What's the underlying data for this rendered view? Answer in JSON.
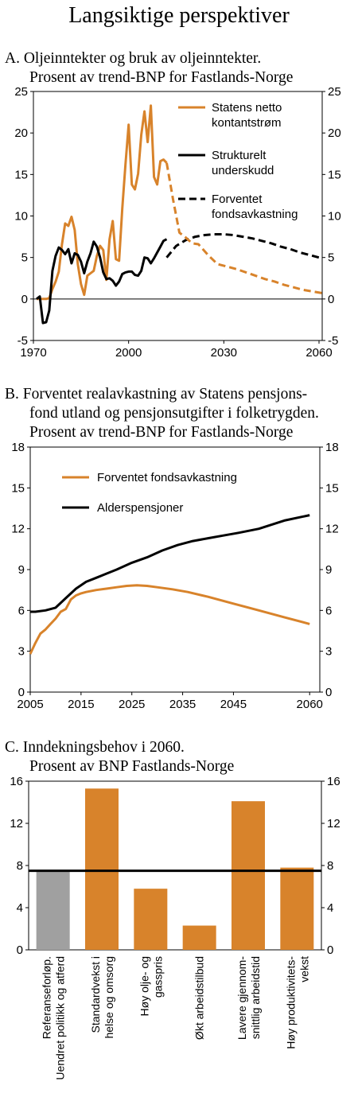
{
  "page_title": "Langsiktige perspektiver",
  "colors": {
    "orange": "#D8832B",
    "black": "#000000",
    "gray": "#A0A0A0"
  },
  "chart_data": [
    {
      "id": "A",
      "type": "line",
      "title": "A.  Oljeinntekter og bruk av oljeinntekter.",
      "subtitle": "Prosent av trend-BNP for Fastlands-Norge",
      "xlim": [
        1970,
        2061
      ],
      "ylim": [
        -5,
        25
      ],
      "xticks": [
        1970,
        2000,
        2030,
        2060
      ],
      "yticks": [
        -5,
        0,
        5,
        10,
        15,
        20,
        25
      ],
      "grid": false,
      "legend": "top-right",
      "series": [
        {
          "name": "Statens netto kontantstrøm",
          "color": "#D8832B",
          "dash": "solid",
          "x": [
            1971,
            1972,
            1973,
            1974,
            1975,
            1976,
            1977,
            1978,
            1979,
            1980,
            1981,
            1982,
            1983,
            1984,
            1985,
            1986,
            1987,
            1988,
            1989,
            1990,
            1991,
            1992,
            1993,
            1994,
            1995,
            1996,
            1997,
            1998,
            1999,
            2000,
            2001,
            2002,
            2003,
            2004,
            2005,
            2006,
            2007,
            2008,
            2009,
            2010,
            2011,
            2012
          ],
          "y": [
            0,
            0,
            0,
            0,
            0.1,
            1.2,
            2.1,
            3.3,
            6.6,
            9.1,
            8.8,
            9.9,
            8.3,
            4.2,
            1.8,
            0.5,
            2.8,
            3.1,
            3.4,
            5.2,
            6.4,
            5.9,
            2.3,
            7.2,
            9.4,
            4.8,
            4.6,
            10.9,
            16.2,
            21.0,
            13.8,
            13.2,
            15.1,
            19.8,
            22.6,
            18.9,
            23.3,
            14.7,
            13.8,
            16.6,
            16.8,
            16.4
          ]
        },
        {
          "name": "Strukturelt underskudd",
          "color": "#000000",
          "dash": "solid",
          "x": [
            1971,
            1972,
            1973,
            1974,
            1975,
            1976,
            1977,
            1978,
            1979,
            1980,
            1981,
            1982,
            1983,
            1984,
            1985,
            1986,
            1987,
            1988,
            1989,
            1990,
            1991,
            1992,
            1993,
            1994,
            1995,
            1996,
            1997,
            1998,
            1999,
            2000,
            2001,
            2002,
            2003,
            2004,
            2005,
            2006,
            2007,
            2008,
            2009,
            2010,
            2011,
            2012
          ],
          "y": [
            0,
            0.3,
            -2.9,
            -2.8,
            -1.4,
            3.4,
            5.2,
            6.2,
            5.9,
            5.4,
            6.0,
            4.3,
            5.5,
            5.3,
            4.5,
            3.1,
            4.5,
            5.5,
            6.9,
            6.3,
            5.0,
            3.2,
            2.4,
            2.5,
            2.2,
            1.6,
            2.1,
            3.0,
            3.2,
            3.3,
            3.3,
            2.9,
            2.8,
            3.4,
            5.0,
            4.9,
            4.3,
            4.9,
            5.6,
            6.3,
            7.0,
            7.2
          ]
        },
        {
          "name": "Forventet fondsavkastning",
          "color": "#000000",
          "dash": "dashed",
          "x": [
            2012,
            2015,
            2018,
            2021,
            2024,
            2027,
            2030,
            2033,
            2036,
            2039,
            2042,
            2045,
            2048,
            2051,
            2054,
            2057,
            2060
          ],
          "y": [
            5.0,
            6.4,
            7.1,
            7.5,
            7.7,
            7.8,
            7.8,
            7.7,
            7.5,
            7.3,
            7.0,
            6.7,
            6.3,
            6.0,
            5.6,
            5.3,
            5.0
          ]
        },
        {
          "name": "Statens netto kontantstrøm (fremskrevet)",
          "color": "#D8832B",
          "dash": "dashed",
          "x": [
            2012,
            2014,
            2016,
            2018,
            2020,
            2022,
            2025,
            2028,
            2031,
            2034,
            2037,
            2040,
            2043,
            2046,
            2049,
            2052,
            2055,
            2058,
            2061
          ],
          "y": [
            16.4,
            12.0,
            8.0,
            7.4,
            6.7,
            6.6,
            5.3,
            4.2,
            3.9,
            3.6,
            3.2,
            2.8,
            2.4,
            2.1,
            1.7,
            1.4,
            1.1,
            0.9,
            0.7
          ]
        }
      ],
      "legend_entries": [
        {
          "line1": "Statens netto",
          "line2": "kontantstrøm",
          "color": "#D8832B",
          "dash": "solid"
        },
        {
          "line1": "Strukturelt",
          "line2": "underskudd",
          "color": "#000000",
          "dash": "solid"
        },
        {
          "line1": "Forventet",
          "line2": "fondsavkastning",
          "color": "#000000",
          "dash": "dashed"
        }
      ]
    },
    {
      "id": "B",
      "type": "line",
      "title": "B.  Forventet realavkastning av Statens pensjons-",
      "subtitle": "fond utland og pensjonsutgifter i folketrygden.",
      "subtitle2": "Prosent av trend-BNP for Fastlands-Norge",
      "xlim": [
        2005,
        2062
      ],
      "ylim": [
        0,
        18
      ],
      "xticks": [
        2005,
        2015,
        2025,
        2035,
        2045,
        2060
      ],
      "yticks": [
        0,
        3,
        6,
        9,
        12,
        15,
        18
      ],
      "grid": false,
      "legend": "top-left",
      "series": [
        {
          "name": "Forventet fondsavkastning",
          "color": "#D8832B",
          "x": [
            2005,
            2006,
            2007,
            2008,
            2009,
            2010,
            2011,
            2012,
            2013,
            2014,
            2015,
            2016,
            2018,
            2020,
            2022,
            2024,
            2026,
            2028,
            2030,
            2033,
            2036,
            2040,
            2045,
            2050,
            2055,
            2060
          ],
          "y": [
            2.8,
            3.6,
            4.3,
            4.6,
            5.0,
            5.4,
            5.9,
            6.1,
            6.8,
            7.1,
            7.25,
            7.35,
            7.5,
            7.6,
            7.7,
            7.8,
            7.85,
            7.8,
            7.7,
            7.55,
            7.35,
            7.0,
            6.5,
            6.0,
            5.5,
            5.0
          ]
        },
        {
          "name": "Alderspensjoner",
          "color": "#000000",
          "x": [
            2005,
            2006,
            2008,
            2010,
            2012,
            2014,
            2016,
            2018,
            2020,
            2022,
            2025,
            2028,
            2031,
            2034,
            2037,
            2040,
            2043,
            2046,
            2050,
            2055,
            2060
          ],
          "y": [
            5.9,
            5.9,
            6.0,
            6.2,
            6.9,
            7.6,
            8.1,
            8.4,
            8.7,
            9.0,
            9.5,
            9.9,
            10.4,
            10.8,
            11.1,
            11.3,
            11.5,
            11.7,
            12.0,
            12.6,
            13.0
          ]
        }
      ],
      "legend_entries": [
        {
          "label": "Forventet fondsavkastning",
          "color": "#D8832B"
        },
        {
          "label": "Alderspensjoner",
          "color": "#000000"
        }
      ]
    },
    {
      "id": "C",
      "type": "bar",
      "title": "C.  Inndekningsbehov i 2060.",
      "subtitle": "Prosent av BNP Fastlands-Norge",
      "ylim": [
        0,
        16
      ],
      "yticks": [
        0,
        4,
        8,
        12,
        16
      ],
      "reference_line": 7.5,
      "grid": false,
      "categories": [
        [
          "Referanseforløp.",
          "Uendret politikk og atferd"
        ],
        [
          "Standardvekst i",
          "helse og omsorg"
        ],
        [
          "Høy olje- og",
          "gasspris"
        ],
        [
          "Økt arbeidstilbud"
        ],
        [
          "Lavere gjennom-",
          "snittlig arbeidstid"
        ],
        [
          "Høy produktivitets-",
          "vekst"
        ]
      ],
      "values": [
        7.5,
        15.3,
        5.8,
        2.3,
        14.1,
        7.8
      ],
      "bar_colors": [
        "#A0A0A0",
        "#D8832B",
        "#D8832B",
        "#D8832B",
        "#D8832B",
        "#D8832B"
      ]
    }
  ]
}
